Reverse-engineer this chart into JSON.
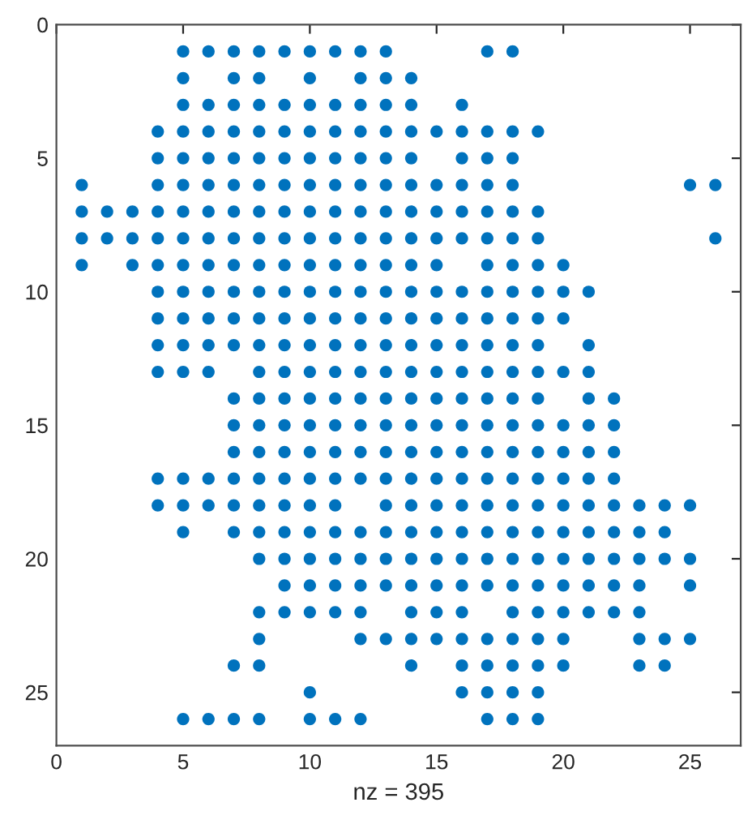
{
  "chart_data": {
    "type": "scatter",
    "xlabel": "nz = 395",
    "xlim": [
      0,
      27
    ],
    "ylim": [
      27,
      0
    ],
    "xticks": [
      0,
      5,
      10,
      15,
      20,
      25
    ],
    "yticks": [
      0,
      5,
      10,
      15,
      20,
      25
    ],
    "marker": "circle",
    "grid": false,
    "series": [
      {
        "color": "#0072bd",
        "x": [
          5,
          6,
          7,
          8,
          9,
          10,
          11,
          12,
          13,
          17,
          18,
          5,
          7,
          8,
          10,
          12,
          13,
          14,
          5,
          6,
          7,
          8,
          9,
          10,
          11,
          12,
          13,
          14,
          16,
          4,
          5,
          6,
          7,
          8,
          9,
          10,
          11,
          12,
          13,
          14,
          15,
          16,
          17,
          18,
          19,
          4,
          5,
          6,
          7,
          8,
          9,
          10,
          11,
          12,
          13,
          14,
          16,
          17,
          18,
          1,
          4,
          5,
          6,
          7,
          8,
          9,
          10,
          11,
          12,
          13,
          14,
          15,
          16,
          17,
          18,
          25,
          26,
          1,
          2,
          3,
          4,
          5,
          6,
          7,
          8,
          9,
          10,
          11,
          12,
          13,
          14,
          15,
          16,
          17,
          18,
          19,
          1,
          2,
          3,
          4,
          5,
          6,
          7,
          8,
          9,
          10,
          11,
          12,
          13,
          14,
          15,
          16,
          17,
          18,
          19,
          26,
          1,
          3,
          4,
          5,
          6,
          7,
          8,
          9,
          10,
          11,
          12,
          13,
          14,
          15,
          17,
          18,
          19,
          20,
          4,
          5,
          6,
          7,
          8,
          9,
          10,
          11,
          12,
          13,
          14,
          15,
          16,
          17,
          18,
          19,
          20,
          21,
          4,
          5,
          6,
          7,
          8,
          9,
          10,
          11,
          12,
          13,
          14,
          15,
          16,
          17,
          18,
          19,
          20,
          4,
          5,
          6,
          7,
          8,
          9,
          10,
          11,
          12,
          13,
          14,
          15,
          16,
          17,
          18,
          19,
          21,
          4,
          5,
          6,
          8,
          9,
          10,
          11,
          12,
          13,
          14,
          15,
          16,
          17,
          18,
          19,
          20,
          21,
          7,
          8,
          9,
          10,
          11,
          12,
          13,
          14,
          15,
          16,
          17,
          18,
          19,
          21,
          22,
          7,
          8,
          9,
          10,
          11,
          12,
          13,
          14,
          15,
          16,
          17,
          18,
          19,
          20,
          21,
          22,
          7,
          8,
          9,
          10,
          11,
          12,
          13,
          14,
          15,
          16,
          17,
          18,
          19,
          20,
          21,
          22,
          4,
          5,
          6,
          7,
          8,
          9,
          10,
          11,
          12,
          13,
          14,
          15,
          16,
          17,
          18,
          19,
          20,
          21,
          22,
          4,
          5,
          6,
          7,
          8,
          9,
          10,
          11,
          13,
          14,
          15,
          16,
          17,
          18,
          19,
          20,
          21,
          22,
          23,
          24,
          25,
          5,
          7,
          8,
          9,
          10,
          11,
          12,
          13,
          14,
          15,
          16,
          17,
          18,
          19,
          20,
          21,
          22,
          23,
          24,
          8,
          9,
          10,
          11,
          12,
          13,
          14,
          15,
          16,
          17,
          18,
          19,
          20,
          21,
          22,
          23,
          24,
          25,
          9,
          10,
          11,
          12,
          13,
          14,
          15,
          16,
          17,
          18,
          19,
          20,
          21,
          22,
          23,
          25,
          8,
          9,
          10,
          11,
          12,
          14,
          15,
          16,
          18,
          19,
          20,
          21,
          22,
          23,
          8,
          12,
          13,
          14,
          15,
          16,
          17,
          18,
          19,
          20,
          23,
          24,
          25,
          7,
          8,
          14,
          16,
          17,
          18,
          19,
          20,
          23,
          24,
          10,
          16,
          17,
          18,
          19,
          5,
          6,
          7,
          8,
          10,
          11,
          12,
          17,
          18,
          19
        ],
        "values": [
          1,
          1,
          1,
          1,
          1,
          1,
          1,
          1,
          1,
          1,
          1,
          2,
          2,
          2,
          2,
          2,
          2,
          2,
          3,
          3,
          3,
          3,
          3,
          3,
          3,
          3,
          3,
          3,
          3,
          4,
          4,
          4,
          4,
          4,
          4,
          4,
          4,
          4,
          4,
          4,
          4,
          4,
          4,
          4,
          4,
          5,
          5,
          5,
          5,
          5,
          5,
          5,
          5,
          5,
          5,
          5,
          5,
          5,
          5,
          6,
          6,
          6,
          6,
          6,
          6,
          6,
          6,
          6,
          6,
          6,
          6,
          6,
          6,
          6,
          6,
          6,
          6,
          7,
          7,
          7,
          7,
          7,
          7,
          7,
          7,
          7,
          7,
          7,
          7,
          7,
          7,
          7,
          7,
          7,
          7,
          7,
          8,
          8,
          8,
          8,
          8,
          8,
          8,
          8,
          8,
          8,
          8,
          8,
          8,
          8,
          8,
          8,
          8,
          8,
          8,
          8,
          9,
          9,
          9,
          9,
          9,
          9,
          9,
          9,
          9,
          9,
          9,
          9,
          9,
          9,
          9,
          9,
          9,
          9,
          10,
          10,
          10,
          10,
          10,
          10,
          10,
          10,
          10,
          10,
          10,
          10,
          10,
          10,
          10,
          10,
          10,
          10,
          11,
          11,
          11,
          11,
          11,
          11,
          11,
          11,
          11,
          11,
          11,
          11,
          11,
          11,
          11,
          11,
          11,
          12,
          12,
          12,
          12,
          12,
          12,
          12,
          12,
          12,
          12,
          12,
          12,
          12,
          12,
          12,
          12,
          12,
          13,
          13,
          13,
          13,
          13,
          13,
          13,
          13,
          13,
          13,
          13,
          13,
          13,
          13,
          13,
          13,
          13,
          14,
          14,
          14,
          14,
          14,
          14,
          14,
          14,
          14,
          14,
          14,
          14,
          14,
          14,
          14,
          15,
          15,
          15,
          15,
          15,
          15,
          15,
          15,
          15,
          15,
          15,
          15,
          15,
          15,
          15,
          15,
          16,
          16,
          16,
          16,
          16,
          16,
          16,
          16,
          16,
          16,
          16,
          16,
          16,
          16,
          16,
          16,
          17,
          17,
          17,
          17,
          17,
          17,
          17,
          17,
          17,
          17,
          17,
          17,
          17,
          17,
          17,
          17,
          17,
          17,
          17,
          18,
          18,
          18,
          18,
          18,
          18,
          18,
          18,
          18,
          18,
          18,
          18,
          18,
          18,
          18,
          18,
          18,
          18,
          18,
          18,
          18,
          19,
          19,
          19,
          19,
          19,
          19,
          19,
          19,
          19,
          19,
          19,
          19,
          19,
          19,
          19,
          19,
          19,
          19,
          19,
          20,
          20,
          20,
          20,
          20,
          20,
          20,
          20,
          20,
          20,
          20,
          20,
          20,
          20,
          20,
          20,
          20,
          20,
          21,
          21,
          21,
          21,
          21,
          21,
          21,
          21,
          21,
          21,
          21,
          21,
          21,
          21,
          21,
          21,
          22,
          22,
          22,
          22,
          22,
          22,
          22,
          22,
          22,
          22,
          22,
          22,
          22,
          22,
          23,
          23,
          23,
          23,
          23,
          23,
          23,
          23,
          23,
          23,
          23,
          23,
          23,
          24,
          24,
          24,
          24,
          24,
          24,
          24,
          24,
          24,
          24,
          25,
          25,
          25,
          25,
          25,
          26,
          26,
          26,
          26,
          26,
          26,
          26,
          26,
          26,
          26
        ]
      }
    ]
  }
}
